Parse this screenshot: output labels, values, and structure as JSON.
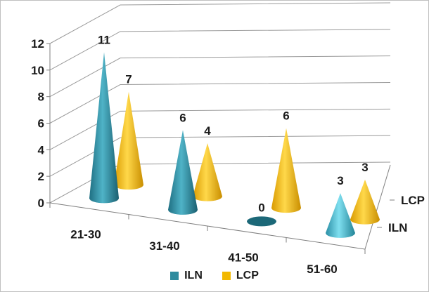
{
  "chart_data": {
    "type": "bar",
    "style": "3d-cone",
    "title": "",
    "xlabel": "",
    "ylabel": "",
    "categories": [
      "21-30",
      "31-40",
      "41-50",
      "51-60"
    ],
    "depth_labels": [
      "LCP",
      "ILN"
    ],
    "ylim": [
      0,
      12
    ],
    "yticks": [
      "0",
      "2",
      "4",
      "6",
      "8",
      "10",
      "12"
    ],
    "grid": true,
    "legend_position": "bottom",
    "series": [
      {
        "name": "ILN",
        "values": [
          11,
          6,
          0,
          3
        ],
        "labels": [
          "11",
          "6",
          "0",
          "3"
        ],
        "color": "#2e8b9e"
      },
      {
        "name": "LCP",
        "values": [
          7,
          4,
          6,
          3
        ],
        "labels": [
          "7",
          "4",
          "6",
          "3"
        ],
        "color": "#f2b800"
      }
    ]
  },
  "legend": {
    "items": [
      {
        "label": "ILN",
        "color": "#2e8b9e"
      },
      {
        "label": "LCP",
        "color": "#f2b800"
      }
    ]
  }
}
